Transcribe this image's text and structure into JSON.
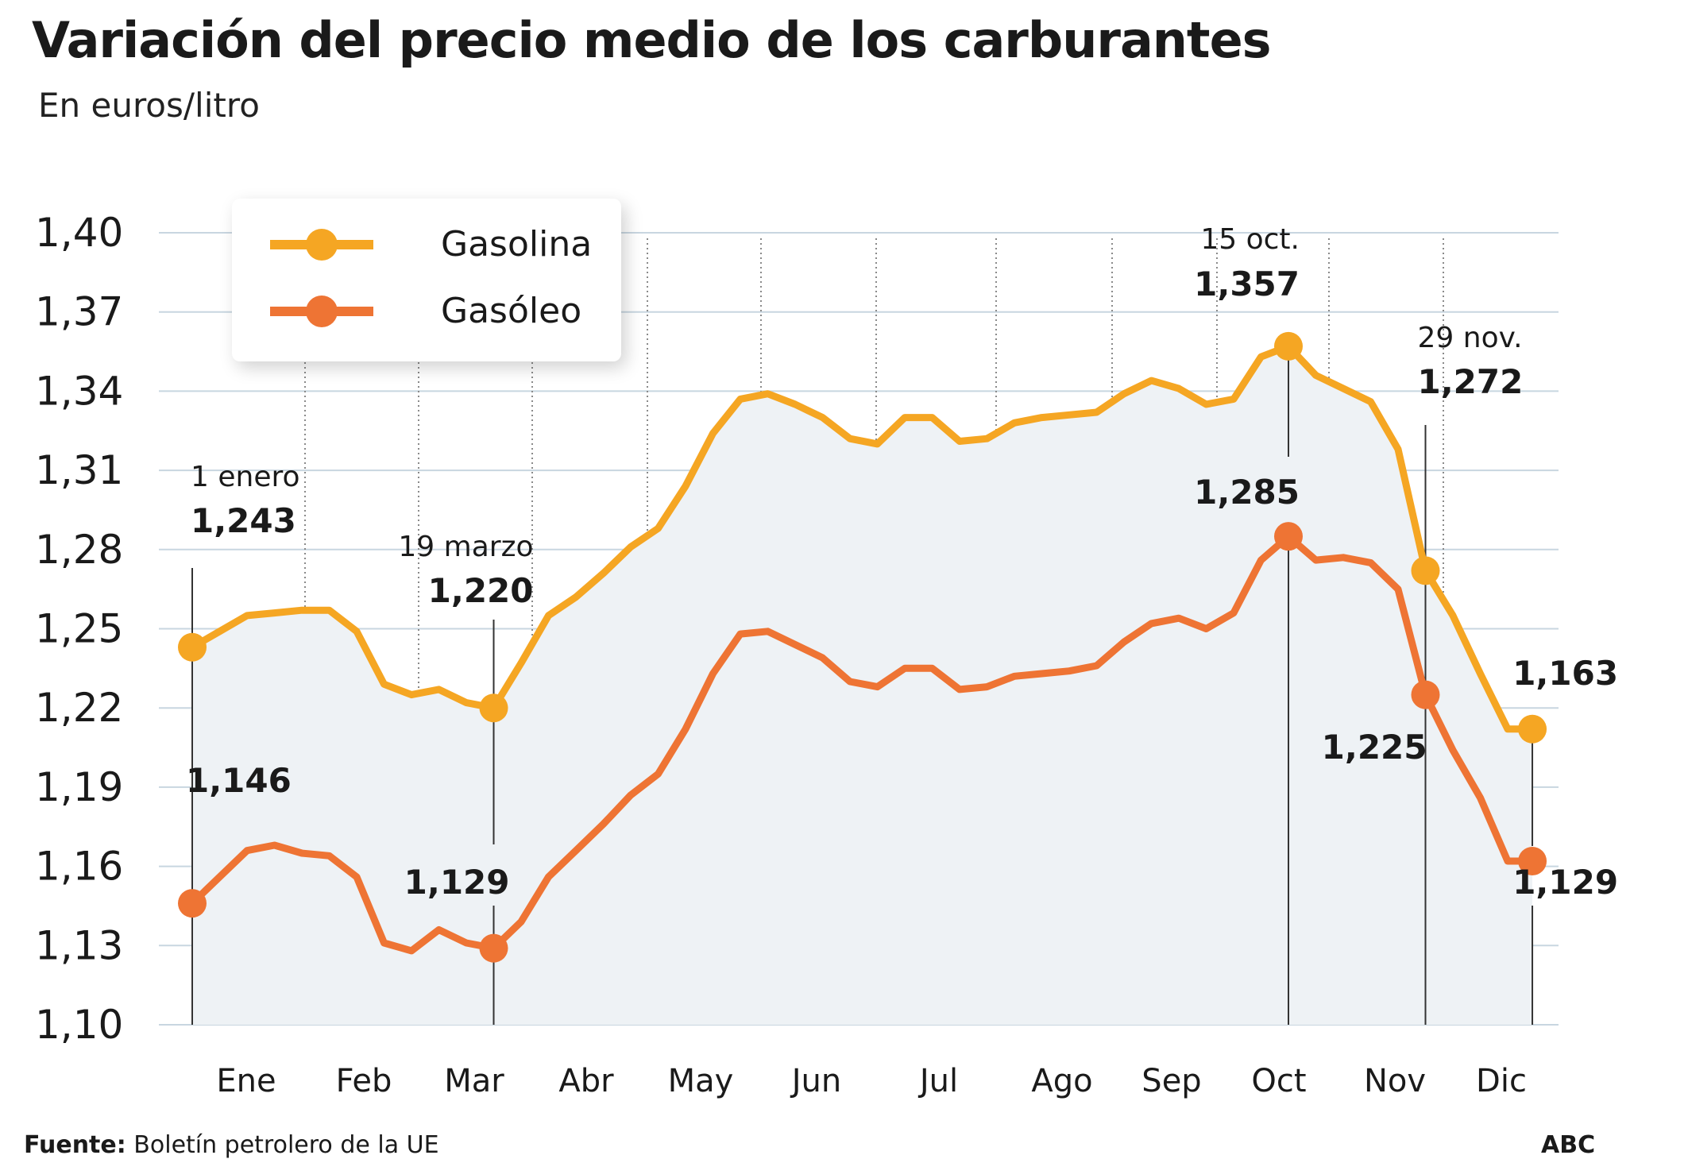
{
  "title": "Variación del precio medio de los carburantes",
  "subtitle": "En euros/litro",
  "legend": [
    {
      "name": "Gasolina",
      "color": "#f5a623"
    },
    {
      "name": "Gasóleo",
      "color": "#ee7434"
    }
  ],
  "footer": {
    "source_label": "Fuente:",
    "source_text": "Boletín petrolero de la UE",
    "brand": "ABC"
  },
  "chart_data": {
    "type": "area",
    "title": "Variación del precio medio de los carburantes",
    "ylabel": "En euros/litro",
    "ylim": [
      1.1,
      1.4
    ],
    "y_ticks": [
      "1,40",
      "1,37",
      "1,34",
      "1,31",
      "1,28",
      "1,25",
      "1,22",
      "1,19",
      "1,16",
      "1,13",
      "1,10"
    ],
    "months": [
      "Ene",
      "Feb",
      "Mar",
      "Abr",
      "May",
      "Jun",
      "Jul",
      "Ago",
      "Sep",
      "Oct",
      "Nov",
      "Dic"
    ],
    "x_unit": "week",
    "x_range": [
      1,
      49
    ],
    "grid": true,
    "legend_position": "top-left",
    "series": [
      {
        "name": "Gasolina",
        "color": "#f5a623",
        "fill": "#eef2f5",
        "x": [
          1,
          2,
          3,
          4,
          5,
          6,
          7,
          8,
          9,
          10,
          11,
          12,
          13,
          14,
          15,
          16,
          17,
          18,
          19,
          20,
          21,
          22,
          23,
          24,
          25,
          26,
          27,
          28,
          29,
          30,
          31,
          32,
          33,
          34,
          35,
          36,
          37,
          38,
          39,
          40,
          41,
          42,
          43,
          44,
          45,
          46,
          47,
          48,
          49
        ],
        "values": [
          1.243,
          1.249,
          1.255,
          1.256,
          1.257,
          1.257,
          1.249,
          1.229,
          1.225,
          1.227,
          1.222,
          1.22,
          1.237,
          1.255,
          1.262,
          1.271,
          1.281,
          1.288,
          1.304,
          1.324,
          1.337,
          1.339,
          1.335,
          1.33,
          1.322,
          1.32,
          1.33,
          1.33,
          1.321,
          1.322,
          1.328,
          1.33,
          1.331,
          1.332,
          1.339,
          1.344,
          1.341,
          1.335,
          1.337,
          1.353,
          1.357,
          1.346,
          1.341,
          1.336,
          1.318,
          1.272,
          1.255,
          1.233,
          1.212
        ]
      },
      {
        "name": "Gasóleo",
        "color": "#ee7434",
        "x": [
          1,
          2,
          3,
          4,
          5,
          6,
          7,
          8,
          9,
          10,
          11,
          12,
          13,
          14,
          15,
          16,
          17,
          18,
          19,
          20,
          21,
          22,
          23,
          24,
          25,
          26,
          27,
          28,
          29,
          30,
          31,
          32,
          33,
          34,
          35,
          36,
          37,
          38,
          39,
          40,
          41,
          42,
          43,
          44,
          45,
          46,
          47,
          48,
          49
        ],
        "values": [
          1.146,
          1.156,
          1.166,
          1.168,
          1.165,
          1.164,
          1.156,
          1.131,
          1.128,
          1.136,
          1.131,
          1.129,
          1.139,
          1.156,
          1.166,
          1.176,
          1.187,
          1.195,
          1.212,
          1.233,
          1.248,
          1.249,
          1.244,
          1.239,
          1.23,
          1.228,
          1.235,
          1.235,
          1.227,
          1.228,
          1.232,
          1.233,
          1.234,
          1.236,
          1.245,
          1.252,
          1.254,
          1.25,
          1.256,
          1.276,
          1.285,
          1.276,
          1.277,
          1.275,
          1.265,
          1.225,
          1.204,
          1.186,
          1.162
        ]
      }
    ],
    "annotations": [
      {
        "series": "Gasolina",
        "x": 1,
        "date": "1 enero",
        "value": "1,243"
      },
      {
        "series": "Gasolina",
        "x": 12,
        "date": "19 marzo",
        "value": "1,220"
      },
      {
        "series": "Gasolina",
        "x": 41,
        "date": "15 oct.",
        "value": "1,357"
      },
      {
        "series": "Gasolina",
        "x": 46,
        "date": "29 nov.",
        "value": "1,272"
      },
      {
        "series": "Gasolina",
        "x": 51,
        "date": "",
        "value": "1,163"
      },
      {
        "series": "Gasóleo",
        "x": 1,
        "date": "",
        "value": "1,146"
      },
      {
        "series": "Gasóleo",
        "x": 12,
        "date": "",
        "value": "1,129"
      },
      {
        "series": "Gasóleo",
        "x": 41,
        "date": "",
        "value": "1,285"
      },
      {
        "series": "Gasóleo",
        "x": 46,
        "date": "",
        "value": "1,225"
      },
      {
        "series": "Gasóleo",
        "x": 51,
        "date": "",
        "value": "1,129"
      }
    ]
  }
}
